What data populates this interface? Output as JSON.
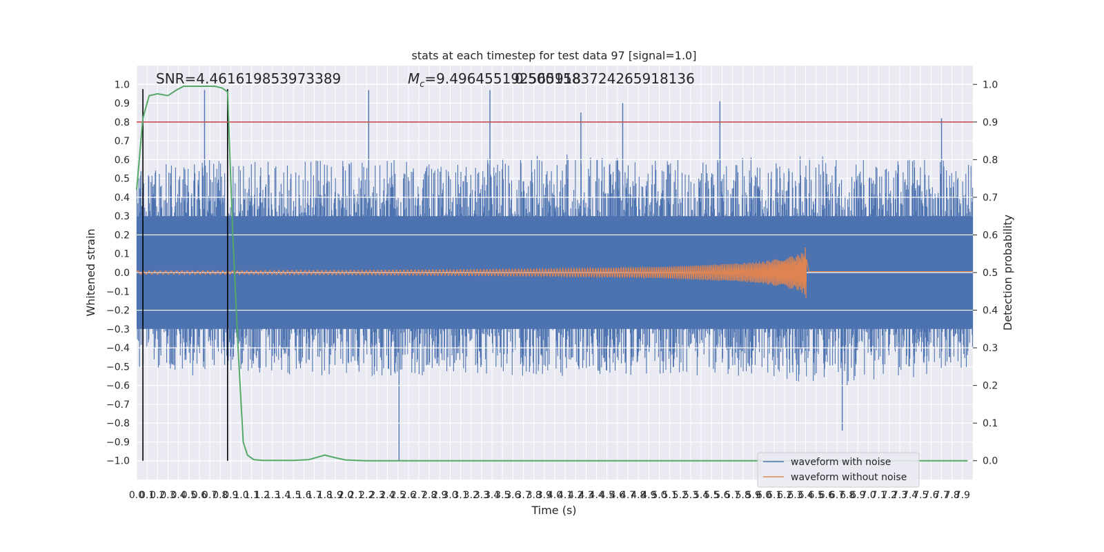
{
  "chart_data": {
    "type": "line",
    "title": "stats at each timestep for test data 97 [signal=1.0]",
    "xlabel": "Time (s)",
    "ylabel": "Whitened strain",
    "ylabel_right": "Detection probability",
    "xlim": [
      0.0,
      8.0
    ],
    "ylim": [
      -1.1,
      1.1
    ],
    "ylim_right": [
      -0.05,
      1.05
    ],
    "x_ticks": [
      "0.0",
      "0.1",
      "0.2",
      "0.3",
      "0.4",
      "0.5",
      "0.6",
      "0.7",
      "0.8",
      "0.9",
      "1.0",
      "1.1",
      "1.2",
      "1.3",
      "1.4",
      "1.5",
      "1.6",
      "1.7",
      "1.8",
      "1.9",
      "2.0",
      "2.1",
      "2.2",
      "2.3",
      "2.4",
      "2.5",
      "2.6",
      "2.7",
      "2.8",
      "2.9",
      "3.0",
      "3.1",
      "3.2",
      "3.3",
      "3.4",
      "3.5",
      "3.6",
      "3.7",
      "3.8",
      "3.9",
      "4.0",
      "4.1",
      "4.2",
      "4.3",
      "4.4",
      "4.5",
      "4.6",
      "4.7",
      "4.8",
      "4.9",
      "5.0",
      "5.1",
      "5.2",
      "5.3",
      "5.4",
      "5.5",
      "5.6",
      "5.7",
      "5.8",
      "5.9",
      "6.0",
      "6.1",
      "6.2",
      "6.3",
      "6.4",
      "6.5",
      "6.6",
      "6.7",
      "6.8",
      "6.9",
      "7.0",
      "7.1",
      "7.2",
      "7.3",
      "7.4",
      "7.5",
      "7.6",
      "7.7",
      "7.8",
      "7.9"
    ],
    "y_ticks": [
      "1.0",
      "0.9",
      "0.8",
      "0.7",
      "0.6",
      "0.5",
      "0.4",
      "0.3",
      "0.2",
      "0.1",
      "0.0",
      "−0.1",
      "−0.2",
      "−0.3",
      "−0.4",
      "−0.5",
      "−0.6",
      "−0.7",
      "−0.8",
      "−0.9",
      "−1.0"
    ],
    "y_ticks_right": [
      "1.0",
      "0.9",
      "0.8",
      "0.7",
      "0.6",
      "0.5",
      "0.4",
      "0.3",
      "0.2",
      "0.1",
      "0.0"
    ],
    "annotations": {
      "snr": "SNR=4.461619853973389",
      "mc": "=9.496455192565918",
      "mc_symbol": "M",
      "mc_sub": "c",
      "q": "0.5001583724265918136"
    },
    "threshold_value": 0.9,
    "vlines_x": [
      0.06,
      0.87
    ],
    "noise_envelope": {
      "x": [
        0.0,
        0.5,
        1.0,
        1.5,
        2.0,
        2.5,
        3.0,
        3.5,
        4.0,
        4.5,
        5.0,
        5.5,
        6.0,
        6.5,
        7.0,
        7.5,
        8.0
      ],
      "upper": [
        0.55,
        0.6,
        0.6,
        0.58,
        0.62,
        0.6,
        0.58,
        0.62,
        0.64,
        0.62,
        0.6,
        0.6,
        0.62,
        0.62,
        0.6,
        0.62,
        0.58
      ],
      "lower": [
        -0.5,
        -0.55,
        -0.55,
        -0.55,
        -0.55,
        -0.55,
        -0.55,
        -0.55,
        -0.55,
        -0.55,
        -0.55,
        -0.55,
        -0.55,
        -0.6,
        -0.6,
        -0.55,
        -0.5
      ],
      "spikes": [
        [
          0.65,
          0.97
        ],
        [
          0.87,
          -0.82
        ],
        [
          2.22,
          0.97
        ],
        [
          2.51,
          -1.0
        ],
        [
          3.38,
          0.97
        ],
        [
          4.25,
          0.85
        ],
        [
          4.65,
          0.9
        ],
        [
          5.58,
          0.91
        ],
        [
          6.75,
          -0.84
        ],
        [
          7.7,
          0.82
        ]
      ]
    },
    "series": [
      {
        "name": "waveform with noise",
        "color": "#4c72b0"
      },
      {
        "name": "waveform without noise",
        "color": "#dd8452",
        "x": [
          0.0,
          0.5,
          1.0,
          1.5,
          2.0,
          2.5,
          3.0,
          3.5,
          4.0,
          4.5,
          5.0,
          5.5,
          5.8,
          6.0,
          6.1,
          6.15,
          6.3,
          6.38,
          6.41,
          6.43,
          6.5,
          7.0,
          8.0
        ],
        "amplitude": [
          0.01,
          0.01,
          0.01,
          0.012,
          0.012,
          0.014,
          0.015,
          0.018,
          0.02,
          0.025,
          0.03,
          0.042,
          0.05,
          0.06,
          0.07,
          0.075,
          0.09,
          0.11,
          0.15,
          0.005,
          0.005,
          0.005,
          0.005
        ]
      },
      {
        "name": "detection probability",
        "color": "#55a868",
        "axis": "right",
        "x": [
          0.0,
          0.06,
          0.12,
          0.2,
          0.3,
          0.38,
          0.45,
          0.55,
          0.65,
          0.75,
          0.82,
          0.87,
          0.92,
          0.97,
          1.02,
          1.06,
          1.12,
          1.2,
          1.3,
          1.5,
          1.65,
          1.8,
          1.9,
          2.0,
          2.1,
          2.2,
          3.0,
          4.0,
          5.0,
          6.0,
          7.0,
          7.95
        ],
        "y": [
          0.72,
          0.91,
          0.97,
          0.975,
          0.97,
          0.985,
          0.995,
          0.995,
          0.995,
          0.995,
          0.99,
          0.98,
          0.6,
          0.3,
          0.05,
          0.015,
          0.003,
          0.001,
          0.001,
          0.001,
          0.003,
          0.015,
          0.008,
          0.002,
          0.001,
          0.0,
          0.0,
          0.0,
          0.0,
          0.0,
          0.0,
          0.0
        ]
      }
    ],
    "legend": {
      "placement": "lower-right",
      "items": [
        "waveform with noise",
        "waveform without noise"
      ]
    },
    "colors": {
      "background": "#eaeaf2",
      "grid": "#ffffff",
      "threshold": "#c44e52",
      "vline": "#000000"
    }
  }
}
